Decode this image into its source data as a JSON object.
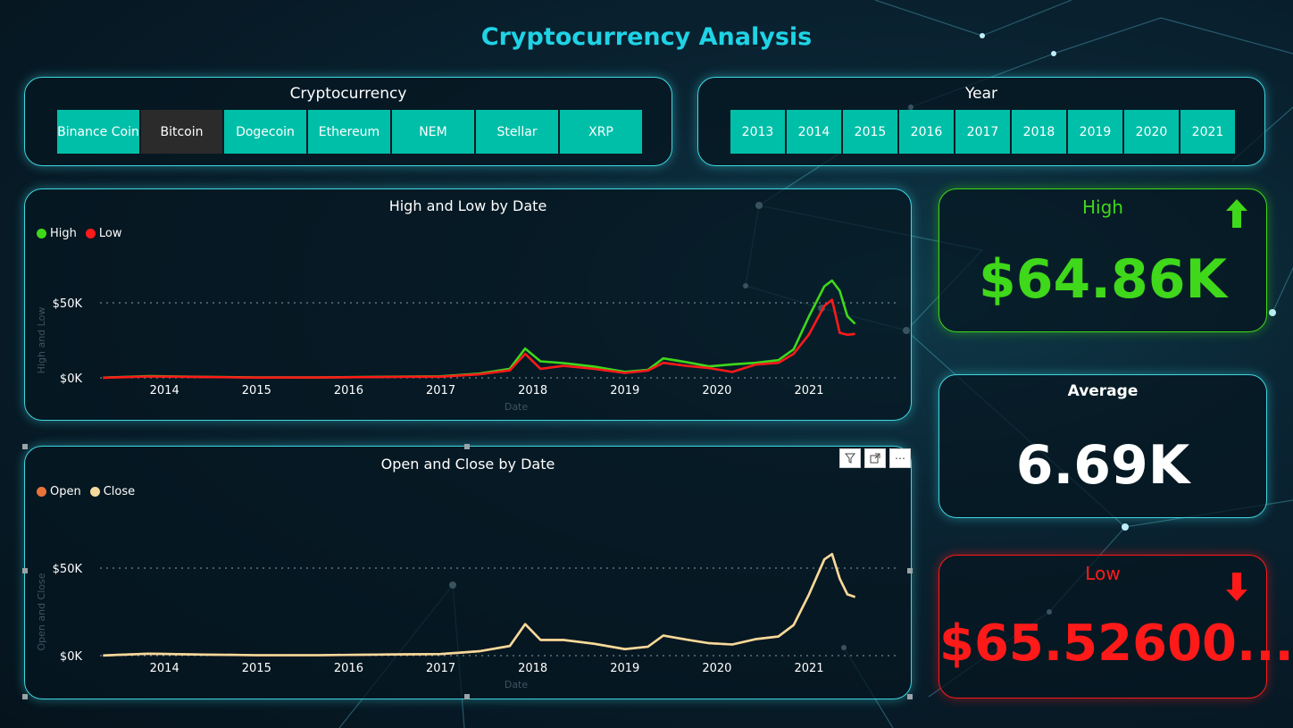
{
  "title": "Cryptocurrency Analysis",
  "crypto_slicer": {
    "title": "Cryptocurrency",
    "options": [
      "Binance Coin",
      "Bitcoin",
      "Dogecoin",
      "Ethereum",
      "NEM",
      "Stellar",
      "XRP"
    ],
    "selected": "Bitcoin"
  },
  "year_slicer": {
    "title": "Year",
    "options": [
      "2013",
      "2014",
      "2015",
      "2016",
      "2017",
      "2018",
      "2019",
      "2020",
      "2021"
    ]
  },
  "kpis": {
    "high": {
      "label": "High",
      "value": "$64.86K",
      "color": "#3fd81a",
      "icon": "arrow-up-icon"
    },
    "average": {
      "label": "Average",
      "value": "6.69K",
      "color": "#ffffff"
    },
    "low": {
      "label": "Low",
      "value": "$65.52600...",
      "color": "#ff1a1a",
      "icon": "arrow-down-icon"
    }
  },
  "chart_data": [
    {
      "type": "line",
      "title": "High and Low by Date",
      "xlabel": "Date",
      "ylabel": "High and Low",
      "x_ticks": [
        "2014",
        "2015",
        "2016",
        "2017",
        "2018",
        "2019",
        "2020",
        "2021"
      ],
      "y_ticks": [
        "$0K",
        "$50K"
      ],
      "ylim": [
        0,
        65000
      ],
      "x": [
        "2013-05",
        "2013-11",
        "2014-06",
        "2015-01",
        "2015-09",
        "2016-06",
        "2017-01",
        "2017-06",
        "2017-10",
        "2017-12",
        "2018-02",
        "2018-05",
        "2018-09",
        "2019-01",
        "2019-04",
        "2019-06",
        "2019-09",
        "2019-12",
        "2020-03",
        "2020-06",
        "2020-09",
        "2020-11",
        "2021-01",
        "2021-03",
        "2021-04",
        "2021-05",
        "2021-06",
        "2021-07"
      ],
      "series": [
        {
          "name": "High",
          "color": "#3fd81a",
          "values": [
            120,
            1200,
            650,
            300,
            250,
            700,
            1000,
            2800,
            6000,
            19500,
            11000,
            9800,
            7500,
            4000,
            5300,
            13000,
            10500,
            7600,
            9000,
            10000,
            11800,
            19000,
            41000,
            61000,
            64800,
            58000,
            41000,
            36000
          ]
        },
        {
          "name": "Low",
          "color": "#ff1a1a",
          "values": [
            70,
            900,
            550,
            180,
            210,
            600,
            800,
            2300,
            5000,
            16000,
            6000,
            8000,
            6000,
            3300,
            4900,
            10000,
            8000,
            6500,
            3900,
            8800,
            10000,
            16000,
            29000,
            48000,
            52000,
            30000,
            28700,
            29300
          ]
        }
      ],
      "legend": "top-left",
      "grid": true
    },
    {
      "type": "line",
      "title": "Open and Close by Date",
      "xlabel": "Date",
      "ylabel": "Open and Close",
      "x_ticks": [
        "2014",
        "2015",
        "2016",
        "2017",
        "2018",
        "2019",
        "2020",
        "2021"
      ],
      "y_ticks": [
        "$0K",
        "$50K"
      ],
      "ylim": [
        0,
        65000
      ],
      "x": [
        "2013-05",
        "2013-11",
        "2014-06",
        "2015-01",
        "2015-09",
        "2016-06",
        "2017-01",
        "2017-06",
        "2017-10",
        "2017-12",
        "2018-02",
        "2018-05",
        "2018-09",
        "2019-01",
        "2019-04",
        "2019-06",
        "2019-09",
        "2019-12",
        "2020-03",
        "2020-06",
        "2020-09",
        "2020-11",
        "2021-01",
        "2021-03",
        "2021-04",
        "2021-05",
        "2021-06",
        "2021-07"
      ],
      "series": [
        {
          "name": "Open",
          "color": "#e8743b",
          "values": [
            100,
            1100,
            600,
            250,
            230,
            650,
            900,
            2500,
            5500,
            18000,
            9000,
            9000,
            6800,
            3700,
            5100,
            11500,
            9200,
            7100,
            6400,
            9400,
            10900,
            17500,
            35000,
            55000,
            58000,
            44000,
            35000,
            33500
          ]
        },
        {
          "name": "Close",
          "color": "#f3d99b",
          "values": [
            100,
            1100,
            600,
            250,
            230,
            650,
            900,
            2500,
            5500,
            18000,
            9000,
            9000,
            6800,
            3700,
            5100,
            11500,
            9200,
            7100,
            6400,
            9400,
            10900,
            17500,
            35000,
            55000,
            58000,
            44000,
            35000,
            33500
          ]
        }
      ],
      "legend": "top-left",
      "grid": true
    }
  ]
}
